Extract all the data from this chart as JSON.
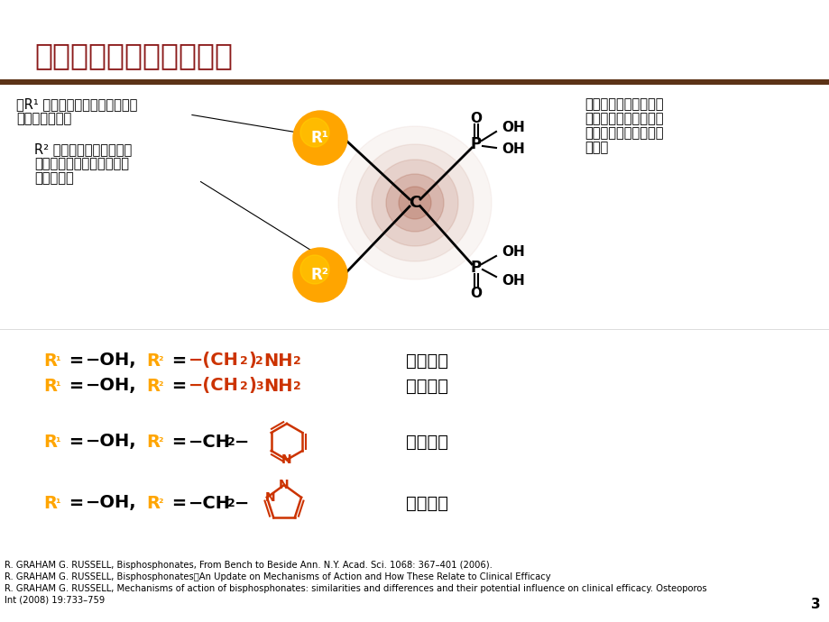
{
  "title": "双膦酸类药物的功能基团",
  "title_color": "#8B1A1A",
  "bg_color": "#FFFFFF",
  "bar_color": "#5C3317",
  "orange": "#FFA500",
  "dark_red": "#CC3300",
  "left_text1a": "当R¹ 基团是羟基时，可以增加药",
  "left_text1b": "物与骨的结合力",
  "left_text2a": "R² 基团决定的是药物抗骨",
  "left_text2b": "吸收能力，以及与羟基磷灰",
  "left_text2c": "石的结合力",
  "right_text1": "膦酸基团是药物与骨组",
  "right_text2": "织羟基膦灰石结合的关",
  "right_text3": "键部位，决定药物的生",
  "right_text4": "化特性",
  "label1": "帕米膦酸",
  "label2": "阿伦膦酸",
  "label3": "利塞膦酸",
  "label4": "唑来膦酸",
  "ref1": "R. GRAHAM G. RUSSELL, Bisphosphonates, From Bench to Beside Ann. N.Y. Acad. Sci. 1068: 367–401 (2006).",
  "ref2": "R. GRAHAM G. RUSSELL, Bisphosphonates．An Update on Mechanisms of Action and How These Relate to Clinical Efficacy",
  "ref3": "R. GRAHAM G. RUSSELL, Mechanisms of action of bisphosphonates: similarities and differences and their potential influence on clinical efficacy. Osteoporos",
  "ref4": "Int (2008) 19:733–759",
  "page_num": "3"
}
